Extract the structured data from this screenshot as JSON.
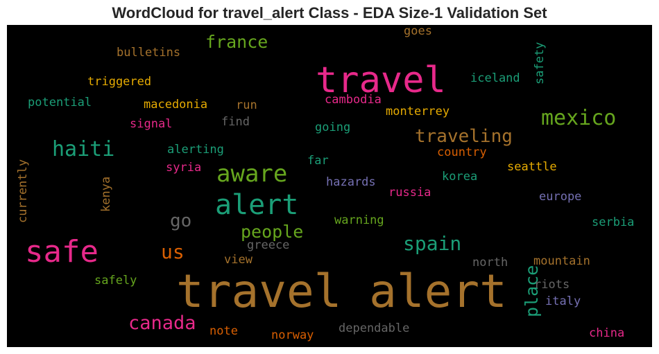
{
  "title": "WordCloud for travel_alert Class - EDA Size-1 Validation Set",
  "words": {
    "travel_alert": {
      "text": "travel alert",
      "color": "#a5722c"
    },
    "travel": {
      "text": "travel",
      "color": "#e7298a"
    },
    "safe": {
      "text": "safe",
      "color": "#e7298a"
    },
    "alert": {
      "text": "alert",
      "color": "#1b9e77"
    },
    "aware": {
      "text": "aware",
      "color": "#66a61e"
    },
    "mexico": {
      "text": "mexico",
      "color": "#66a61e"
    },
    "haiti": {
      "text": "haiti",
      "color": "#1b9e77"
    },
    "traveling": {
      "text": "traveling",
      "color": "#a5722c"
    },
    "spain": {
      "text": "spain",
      "color": "#1b9e77"
    },
    "people": {
      "text": "people",
      "color": "#66a61e"
    },
    "canada": {
      "text": "canada",
      "color": "#e7298a"
    },
    "us": {
      "text": "us",
      "color": "#d95f02"
    },
    "france": {
      "text": "france",
      "color": "#66a61e"
    },
    "go": {
      "text": "go",
      "color": "#666666"
    },
    "place": {
      "text": "place",
      "color": "#1b9e77"
    },
    "bulletins": {
      "text": "bulletins",
      "color": "#a5722c"
    },
    "goes": {
      "text": "goes",
      "color": "#a5722c"
    },
    "safety": {
      "text": "safety",
      "color": "#1b9e77"
    },
    "iceland": {
      "text": "iceland",
      "color": "#1b9e77"
    },
    "triggered": {
      "text": "triggered",
      "color": "#e6ab02"
    },
    "potential": {
      "text": "potential",
      "color": "#1b9e77"
    },
    "macedonia": {
      "text": "macedonia",
      "color": "#e6ab02"
    },
    "run": {
      "text": "run",
      "color": "#a5722c"
    },
    "cambodia": {
      "text": "cambodia",
      "color": "#e7298a"
    },
    "monterrey": {
      "text": "monterrey",
      "color": "#e6ab02"
    },
    "signal": {
      "text": "signal",
      "color": "#e7298a"
    },
    "find": {
      "text": "find",
      "color": "#666666"
    },
    "going": {
      "text": "going",
      "color": "#1b9e77"
    },
    "country": {
      "text": "country",
      "color": "#d95f02"
    },
    "alerting": {
      "text": "alerting",
      "color": "#1b9e77"
    },
    "far": {
      "text": "far",
      "color": "#1b9e77"
    },
    "seattle": {
      "text": "seattle",
      "color": "#e6ab02"
    },
    "syria": {
      "text": "syria",
      "color": "#e7298a"
    },
    "hazards": {
      "text": "hazards",
      "color": "#7570b3"
    },
    "korea": {
      "text": "korea",
      "color": "#1b9e77"
    },
    "currently": {
      "text": "currently",
      "color": "#a5722c"
    },
    "kenya": {
      "text": "kenya",
      "color": "#a5722c"
    },
    "russia": {
      "text": "russia",
      "color": "#e7298a"
    },
    "europe": {
      "text": "europe",
      "color": "#7570b3"
    },
    "warning": {
      "text": "warning",
      "color": "#66a61e"
    },
    "serbia": {
      "text": "serbia",
      "color": "#1b9e77"
    },
    "greece": {
      "text": "greece",
      "color": "#666666"
    },
    "view": {
      "text": "view",
      "color": "#a5722c"
    },
    "mountain": {
      "text": "mountain",
      "color": "#a5722c"
    },
    "north": {
      "text": "north",
      "color": "#666666"
    },
    "safely": {
      "text": "safely",
      "color": "#66a61e"
    },
    "riots": {
      "text": "riots",
      "color": "#666666"
    },
    "italy": {
      "text": "italy",
      "color": "#7570b3"
    },
    "note": {
      "text": "note",
      "color": "#d95f02"
    },
    "dependable": {
      "text": "dependable",
      "color": "#666666"
    },
    "norway": {
      "text": "norway",
      "color": "#d95f02"
    },
    "china": {
      "text": "china",
      "color": "#e7298a"
    }
  }
}
